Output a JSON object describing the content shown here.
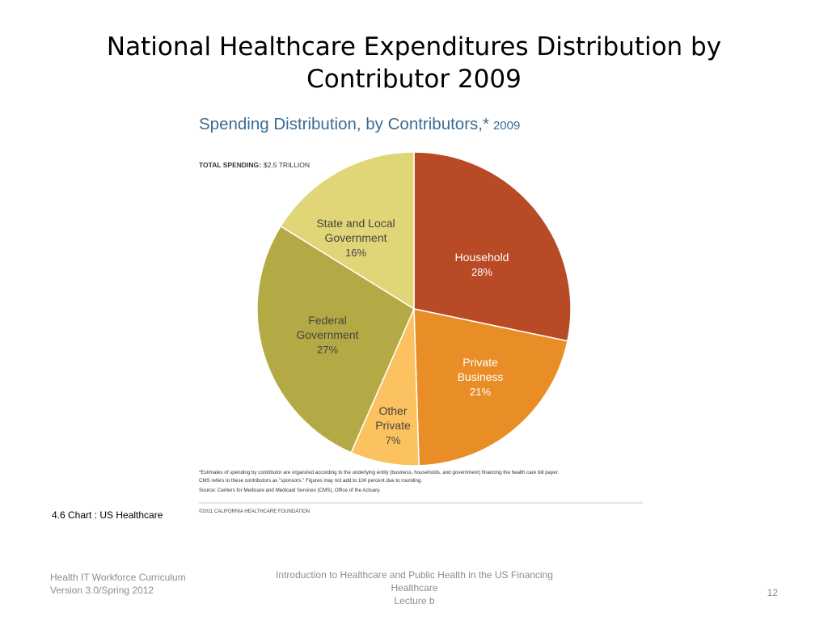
{
  "slide": {
    "title_line1": "National Healthcare Expenditures Distribution by",
    "title_line2": "Contributor 2009"
  },
  "figure": {
    "heading_main": "Spending Distribution, by Contributors,*",
    "heading_year": "2009",
    "total_label": "TOTAL SPENDING:",
    "total_value": "$2.5 TRILLION",
    "footnote_line1": "*Estimates of spending by contributor are organized according to the underlying entity (business, households, and government) financing the health care bill payer.",
    "footnote_line2": "CMS refers to these contributors as \"sponsors.\" Figures may not add to 100 percent due to rounding.",
    "source": "Source: Centers for Medicare and Medicaid Services (CMS), Office of the Actuary.",
    "copyright": "©2011 CALIFORNIA HEALTHCARE FOUNDATION",
    "caption": "4.6 Chart :  US Healthcare"
  },
  "chart_data": {
    "type": "pie",
    "title": "Spending Distribution, by Contributors,* 2009",
    "slices": [
      {
        "label_lines": [
          "Household"
        ],
        "value": 28,
        "value_label": "28%",
        "color": "#b84a25"
      },
      {
        "label_lines": [
          "Private",
          "Business"
        ],
        "value": 21,
        "value_label": "21%",
        "color": "#e98d27"
      },
      {
        "label_lines": [
          "Other",
          "Private"
        ],
        "value": 7,
        "value_label": "7%",
        "color": "#fcc25f"
      },
      {
        "label_lines": [
          "Federal",
          "Government"
        ],
        "value": 27,
        "value_label": "27%",
        "color": "#b3aa45"
      },
      {
        "label_lines": [
          "State and Local",
          "Government"
        ],
        "value": 16,
        "value_label": "16%",
        "color": "#e1d677"
      }
    ],
    "legend": "none"
  },
  "footer": {
    "left_line1": "Health IT Workforce Curriculum",
    "left_line2": "Version 3.0/Spring 2012",
    "center_line1": "Introduction to Healthcare and Public Health in the US Financing",
    "center_line2": "Healthcare",
    "center_line3": "Lecture b",
    "page_number": "12"
  }
}
